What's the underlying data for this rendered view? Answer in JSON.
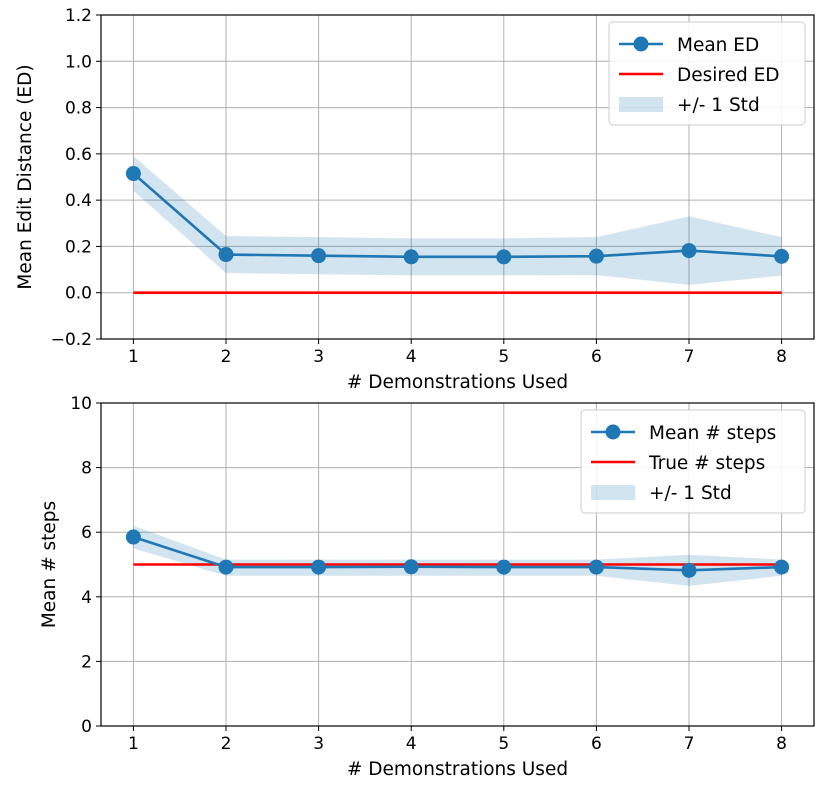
{
  "chart_data": [
    {
      "type": "line",
      "title": "",
      "xlabel": "# Demonstrations Used",
      "ylabel": "Mean Edit Distance (ED)",
      "xlim": [
        0.65,
        8.35
      ],
      "ylim": [
        -0.2,
        1.2
      ],
      "x": [
        1,
        2,
        3,
        4,
        5,
        6,
        7,
        8
      ],
      "x_ticks": [
        "1",
        "2",
        "3",
        "4",
        "5",
        "6",
        "7",
        "8"
      ],
      "y_ticks": [
        "−0.2",
        "0.0",
        "0.2",
        "0.4",
        "0.6",
        "0.8",
        "1.0",
        "1.2"
      ],
      "y_tick_values": [
        -0.2,
        0.0,
        0.2,
        0.4,
        0.6,
        0.8,
        1.0,
        1.2
      ],
      "grid": true,
      "legend_position": "top-right",
      "series": [
        {
          "name": "Mean ED",
          "kind": "line-marker",
          "color": "#1f77b4",
          "values": [
            0.515,
            0.165,
            0.16,
            0.155,
            0.155,
            0.158,
            0.182,
            0.157
          ]
        },
        {
          "name": "Desired ED",
          "kind": "line",
          "color": "#ff0000",
          "values": [
            0,
            0,
            0,
            0,
            0,
            0,
            0,
            0
          ]
        },
        {
          "name": "+/- 1 Std",
          "kind": "band",
          "color": "#1f77b4",
          "upper": [
            0.59,
            0.245,
            0.24,
            0.235,
            0.235,
            0.24,
            0.33,
            0.24
          ],
          "lower": [
            0.44,
            0.085,
            0.08,
            0.075,
            0.075,
            0.076,
            0.034,
            0.074
          ]
        }
      ]
    },
    {
      "type": "line",
      "title": "",
      "xlabel": "# Demonstrations Used",
      "ylabel": "Mean # steps",
      "xlim": [
        0.65,
        8.35
      ],
      "ylim": [
        0,
        10
      ],
      "x": [
        1,
        2,
        3,
        4,
        5,
        6,
        7,
        8
      ],
      "x_ticks": [
        "1",
        "2",
        "3",
        "4",
        "5",
        "6",
        "7",
        "8"
      ],
      "y_ticks": [
        "0",
        "2",
        "4",
        "6",
        "8",
        "10"
      ],
      "y_tick_values": [
        0,
        2,
        4,
        6,
        8,
        10
      ],
      "grid": true,
      "legend_position": "top-right",
      "series": [
        {
          "name": "Mean # steps",
          "kind": "line-marker",
          "color": "#1f77b4",
          "values": [
            5.85,
            4.92,
            4.92,
            4.93,
            4.92,
            4.92,
            4.82,
            4.92
          ]
        },
        {
          "name": "True # steps",
          "kind": "line",
          "color": "#ff0000",
          "values": [
            5,
            5,
            5,
            5,
            5,
            5,
            5,
            5
          ]
        },
        {
          "name": "+/- 1 Std",
          "kind": "band",
          "color": "#1f77b4",
          "upper": [
            6.2,
            5.15,
            5.15,
            5.15,
            5.15,
            5.15,
            5.3,
            5.15
          ],
          "lower": [
            5.5,
            4.65,
            4.65,
            4.65,
            4.65,
            4.65,
            4.34,
            4.65
          ]
        }
      ]
    }
  ]
}
